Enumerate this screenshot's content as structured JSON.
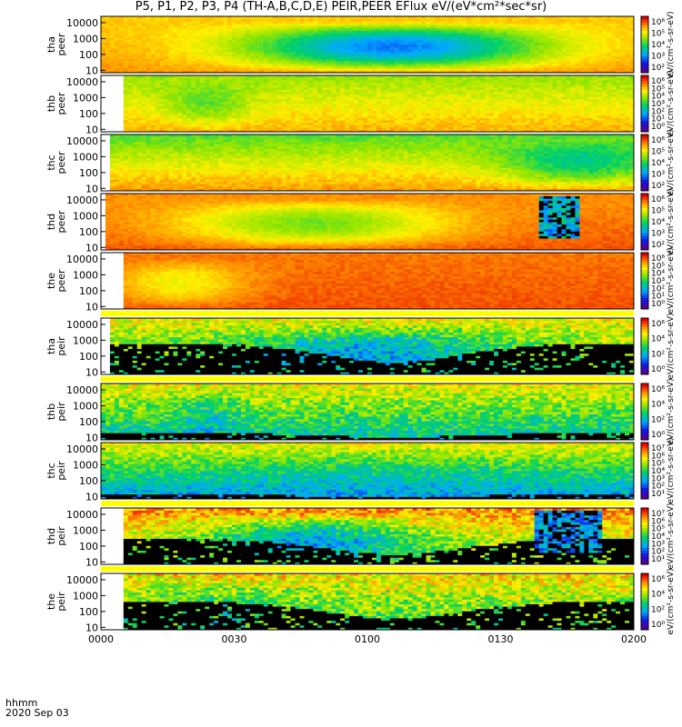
{
  "title": "P5, P1, P2, P3, P4 (TH-A,B,C,D,E) PEIR,PEER EFlux eV/(eV*cm²*sec*sr)",
  "footer": {
    "line1": "hhmm",
    "line2": "2020 Sep 03"
  },
  "colors": {
    "background": "#ffffff",
    "saturation_bar": "#ffff00",
    "fill_value": "#000000"
  },
  "chart_data": {
    "type": "heatmap",
    "title": "P5, P1, P2, P3, P4 (TH-A,B,C,D,E) PEIR,PEER EFlux eV/(eV*cm²*sec*sr)",
    "x_axis": {
      "label": "hhmm",
      "date": "2020 Sep 03",
      "ticks": [
        "0000",
        "0030",
        "0100",
        "0130",
        "0200"
      ],
      "range": [
        "00:00",
        "02:00"
      ]
    },
    "y_scale": "log",
    "y_range_eV": [
      7,
      25000
    ],
    "y_ticks": [
      "10",
      "100",
      "1000",
      "10000"
    ],
    "colormap": "rainbow (purple-blue-green-yellow-red)",
    "panels": [
      {
        "probe": "tha",
        "species": "peer",
        "label": [
          "tha",
          "peer"
        ],
        "cb_ticks": [
          "10⁶",
          "10⁵",
          "10⁴",
          "10³",
          "10²"
        ],
        "cb_label": "eV/(cm²-s-sr-eV)",
        "fill_start": 0.0,
        "fill_end": 1.0,
        "low_level": 0.85,
        "high_level": 0.78,
        "dip_center": 0.55,
        "dip_width": 0.28,
        "dip_depth": 0.55,
        "noise": 0.05,
        "black_below": 0,
        "saturation_bar": false
      },
      {
        "probe": "thb",
        "species": "peer",
        "label": [
          "thb",
          "peer"
        ],
        "cb_ticks": [
          "10⁶",
          "10⁵",
          "10⁴",
          "10³",
          "10²",
          "10¹",
          "10⁰"
        ],
        "cb_label": "eV/(cm²-s-sr-eV)",
        "fill_start": 0.04,
        "fill_end": 1.0,
        "low_level": 0.82,
        "high_level": 0.62,
        "dip_center": 0.2,
        "dip_width": 0.08,
        "dip_depth": 0.15,
        "noise": 0.08,
        "black_below": 0,
        "saturation_bar": false
      },
      {
        "probe": "thc",
        "species": "peer",
        "label": [
          "thc",
          "peer"
        ],
        "cb_ticks": [
          "10⁶",
          "10⁵",
          "10⁴",
          "10³",
          "10²"
        ],
        "cb_label": "eV/(cm²-s-sr-eV)",
        "fill_start": 0.02,
        "fill_end": 1.0,
        "low_level": 0.85,
        "high_level": 0.55,
        "dip_center": 0.9,
        "dip_width": 0.15,
        "dip_depth": 0.25,
        "noise": 0.08,
        "black_below": 0,
        "saturation_bar": false
      },
      {
        "probe": "thd",
        "species": "peer",
        "label": [
          "thd",
          "peer"
        ],
        "cb_ticks": [
          "10⁶",
          "10⁵",
          "10⁴",
          "10³",
          "10²"
        ],
        "cb_label": "eV/(cm²-s-sr-eV)",
        "fill_start": 0.01,
        "fill_end": 1.0,
        "low_level": 0.92,
        "high_level": 0.85,
        "dip_center": 0.4,
        "dip_width": 0.25,
        "dip_depth": 0.3,
        "noise": 0.05,
        "black_below": 0,
        "saturation_bar": false,
        "patch": {
          "x0": 0.82,
          "x1": 0.9,
          "level": 0.35
        }
      },
      {
        "probe": "the",
        "species": "peer",
        "label": [
          "the",
          "peer"
        ],
        "cb_ticks": [
          "10⁶",
          "10⁵",
          "10⁴",
          "10³",
          "10²",
          "10¹",
          "10⁰"
        ],
        "cb_label": "eV/(cm²-s-sr-eV)",
        "fill_start": 0.04,
        "fill_end": 1.0,
        "low_level": 0.92,
        "high_level": 0.88,
        "dip_center": 0.15,
        "dip_width": 0.12,
        "dip_depth": 0.18,
        "noise": 0.05,
        "black_below": 0,
        "saturation_bar": true
      },
      {
        "probe": "tha",
        "species": "peir",
        "label": [
          "tha",
          "peir"
        ],
        "cb_ticks": [
          "10⁶",
          "10⁴",
          "10²",
          "10⁰"
        ],
        "cb_label": "eV/(cm²-s-sr-eV)",
        "fill_start": 0.02,
        "fill_end": 1.0,
        "low_level": 0.5,
        "high_level": 0.72,
        "dip_center": 0.5,
        "dip_width": 0.25,
        "dip_depth": 0.25,
        "noise": 0.25,
        "black_below": 0.55,
        "saturation_bar": true
      },
      {
        "probe": "thb",
        "species": "peir",
        "label": [
          "thb",
          "peir"
        ],
        "cb_ticks": [
          "10⁶",
          "10⁴",
          "10²",
          "10⁰"
        ],
        "cb_label": "eV/(cm²-s-sr-eV)",
        "fill_start": 0.0,
        "fill_end": 1.0,
        "low_level": 0.4,
        "high_level": 0.72,
        "dip_center": 0.2,
        "dip_width": 0.06,
        "dip_depth": 0.12,
        "noise": 0.25,
        "black_below": 0.12,
        "saturation_bar": false
      },
      {
        "probe": "thc",
        "species": "peir",
        "label": [
          "thc",
          "peir"
        ],
        "cb_ticks": [
          "10⁷",
          "10⁶",
          "10⁵",
          "10⁴",
          "10³",
          "10²",
          "10¹"
        ],
        "cb_label": "eV/(cm²-s-sr-eV)",
        "fill_start": 0.0,
        "fill_end": 1.0,
        "low_level": 0.3,
        "high_level": 0.72,
        "dip_center": 0.5,
        "dip_width": 0.3,
        "dip_depth": 0.05,
        "noise": 0.2,
        "black_below": 0.08,
        "saturation_bar": true
      },
      {
        "probe": "thd",
        "species": "peir",
        "label": [
          "thd",
          "peir"
        ],
        "cb_ticks": [
          "10⁷",
          "10⁶",
          "10⁵",
          "10⁴",
          "10³",
          "10²",
          "10¹"
        ],
        "cb_label": "eV/(cm²-s-sr-eV)",
        "fill_start": 0.04,
        "fill_end": 1.0,
        "low_level": 0.55,
        "high_level": 0.85,
        "dip_center": 0.4,
        "dip_width": 0.2,
        "dip_depth": 0.35,
        "noise": 0.25,
        "black_below": 0.45,
        "saturation_bar": true,
        "patch": {
          "x0": 0.81,
          "x1": 0.94,
          "level": 0.3
        }
      },
      {
        "probe": "the",
        "species": "peir",
        "label": [
          "the",
          "peir"
        ],
        "cb_ticks": [
          "10⁶",
          "10⁴",
          "10²",
          "10⁰"
        ],
        "cb_label": "eV/(cm²-s-sr-eV)",
        "fill_start": 0.04,
        "fill_end": 1.0,
        "low_level": 0.5,
        "high_level": 0.75,
        "dip_center": 0.2,
        "dip_width": 0.2,
        "dip_depth": 0.1,
        "noise": 0.3,
        "black_below": 0.5,
        "saturation_bar": false
      }
    ]
  }
}
